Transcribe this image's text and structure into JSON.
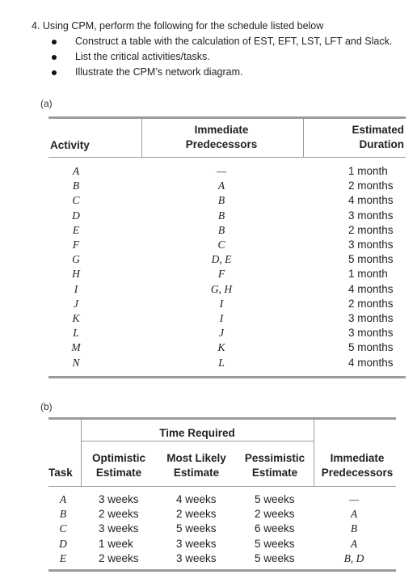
{
  "question": {
    "title": "4. Using CPM, perform the following for the schedule listed below",
    "bullets": [
      "Construct a table with the calculation of EST, EFT, LST, LFT and Slack.",
      "List the critical activities/tasks.",
      "Illustrate the CPM’s network diagram."
    ]
  },
  "table_a": {
    "label": "(a)",
    "headers": {
      "activity": "Activity",
      "pred_line1": "Immediate",
      "pred_line2": "Predecessors",
      "dur_line1": "Estimated",
      "dur_line2": "Duration"
    },
    "activities": [
      "A",
      "B",
      "C",
      "D",
      "E",
      "F",
      "G",
      "H",
      "I",
      "J",
      "K",
      "L",
      "M",
      "N"
    ],
    "predecessors": [
      "—",
      "A",
      "B",
      "B",
      "B",
      "C",
      "D, E",
      "F",
      "G, H",
      "I",
      "I",
      "J",
      "K",
      "L"
    ],
    "durations": [
      "1 month",
      "2 months",
      "4 months",
      "3 months",
      "2 months",
      "3 months",
      "5 months",
      "1 month",
      "4 months",
      "2 months",
      "3 months",
      "3 months",
      "5 months",
      "4 months"
    ]
  },
  "table_b": {
    "label": "(b)",
    "headers": {
      "time_required": "Time Required",
      "task": "Task",
      "opt_line1": "Optimistic",
      "opt_line2": "Estimate",
      "ml_line1": "Most Likely",
      "ml_line2": "Estimate",
      "pes_line1": "Pessimistic",
      "pes_line2": "Estimate",
      "pred_line1": "Immediate",
      "pred_line2": "Predecessors"
    },
    "tasks": [
      "A",
      "B",
      "C",
      "D",
      "E"
    ],
    "optimistic": [
      "3 weeks",
      "2 weeks",
      "3 weeks",
      "1 week",
      "2 weeks"
    ],
    "most_likely": [
      "4 weeks",
      "2 weeks",
      "5 weeks",
      "3 weeks",
      "3 weeks"
    ],
    "pessimistic": [
      "5 weeks",
      "2 weeks",
      "6 weeks",
      "5 weeks",
      "5 weeks"
    ],
    "predecessors": [
      "—",
      "A",
      "B",
      "A",
      "B, D"
    ]
  }
}
